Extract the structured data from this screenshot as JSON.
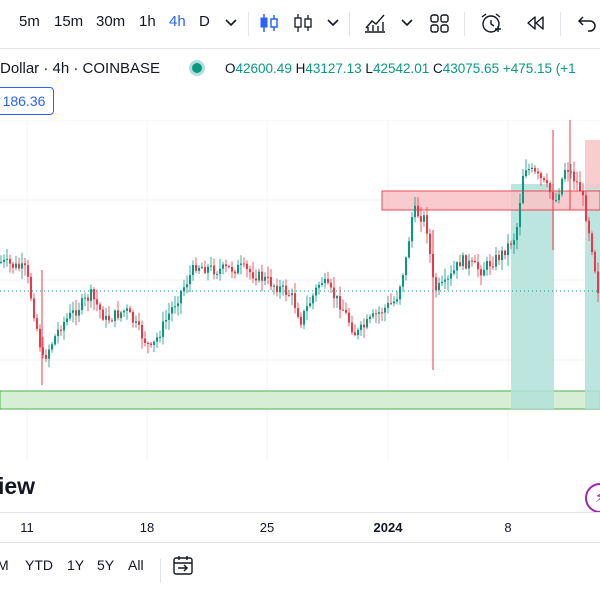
{
  "toolbar": {
    "timeframes": [
      "5m",
      "15m",
      "30m",
      "1h",
      "4h",
      "D"
    ],
    "active_timeframe": "4h"
  },
  "legend": {
    "symbol_text": "Dollar · 4h · COINBASE",
    "open_label": "O",
    "open": "42600.49",
    "high_label": "H",
    "high": "43127.13",
    "low_label": "L",
    "low": "42542.01",
    "close_label": "C",
    "close": "43075.65",
    "change": "+475.15",
    "change_pct": "(+1"
  },
  "price_badge": "186.36",
  "watermark": "iew",
  "x_axis": {
    "ticks": [
      "11",
      "18",
      "25",
      "2024",
      "8"
    ]
  },
  "ranges": [
    "M",
    "YTD",
    "1Y",
    "5Y",
    "All"
  ],
  "colors": {
    "up": "#089981",
    "down": "#f23645",
    "accent": "#2962ff",
    "supply_zone": "#f8c6c9",
    "demand_zone": "#d6efd4",
    "position_zone": "#b2e0d9"
  },
  "icons": [
    "bar-style-icon",
    "candles-icon",
    "indicators-icon",
    "layouts-icon",
    "alert-icon",
    "replay-icon",
    "undo-icon",
    "compare-range-icon"
  ]
}
